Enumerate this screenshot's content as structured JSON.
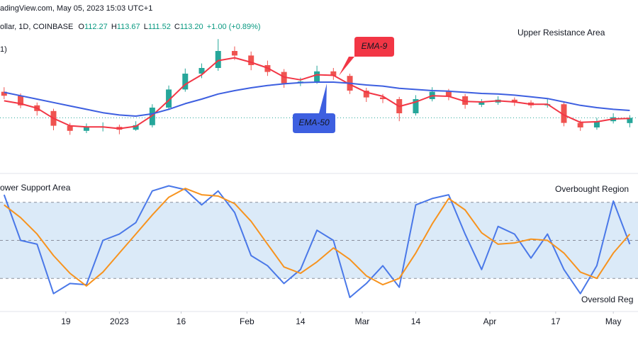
{
  "chart_data": [
    {
      "type": "candlestick",
      "source": "adingView.com, May 05, 2023 15:03 UTC+1",
      "symbol": "ollar, 1D, COINBASE",
      "ohlc": [
        {
          "key": "O",
          "value": "112.27"
        },
        {
          "key": "H",
          "value": "113.67"
        },
        {
          "key": "L",
          "value": "111.52"
        },
        {
          "key": "C",
          "value": "113.20"
        }
      ],
      "change": "+1.00 (+0.89%)",
      "indicator": "1)",
      "annotation": "Upper Resistance Area",
      "up_color": "#26a69a",
      "down_color": "#ef5350",
      "value_color": "#089981",
      "xlim": [
        -29,
        126
      ],
      "ylim": [
        104,
        134
      ],
      "x": [
        -28,
        -24,
        -20,
        -16,
        -12,
        -8,
        -4,
        0,
        4,
        8,
        12,
        16,
        20,
        24,
        28,
        32,
        36,
        40,
        44,
        48,
        52,
        56,
        60,
        64,
        68,
        72,
        76,
        80,
        84,
        88,
        92,
        96,
        100,
        104,
        108,
        112,
        116,
        120,
        124
      ],
      "open": [
        117.8,
        117.1,
        115.4,
        114.4,
        111.8,
        110.9,
        111.5,
        111.6,
        111.1,
        111.9,
        115.0,
        118.2,
        121.0,
        122.0,
        125.0,
        124.2,
        122.5,
        121.3,
        119.3,
        119.6,
        121.4,
        120.6,
        118.0,
        116.8,
        116.5,
        114.0,
        116.5,
        117.8,
        117.0,
        115.5,
        115.9,
        116.4,
        115.9,
        115.4,
        115.6,
        112.3,
        111.5,
        112.6,
        112.27
      ],
      "high": [
        118.6,
        117.5,
        115.9,
        114.8,
        112.3,
        112.2,
        112.4,
        112.0,
        112.6,
        115.6,
        118.9,
        121.9,
        122.8,
        127.1,
        125.8,
        124.9,
        123.3,
        121.8,
        120.3,
        122.4,
        122.0,
        121.0,
        118.5,
        117.4,
        116.9,
        117.2,
        118.6,
        118.3,
        117.4,
        116.5,
        117.0,
        116.8,
        116.3,
        116.6,
        116.0,
        112.8,
        113.2,
        114.0,
        113.67
      ],
      "low": [
        116.5,
        114.9,
        113.6,
        111.0,
        110.2,
        110.5,
        110.8,
        110.3,
        110.9,
        111.5,
        114.6,
        117.8,
        120.2,
        121.5,
        123.4,
        121.6,
        120.6,
        118.5,
        118.8,
        119.2,
        119.9,
        117.4,
        116.0,
        115.8,
        112.6,
        113.6,
        116.1,
        116.3,
        114.8,
        115.1,
        115.5,
        115.3,
        114.9,
        115.0,
        111.7,
        110.9,
        111.1,
        112.2,
        111.52
      ],
      "close": [
        117.1,
        115.4,
        114.4,
        111.8,
        110.9,
        111.5,
        111.6,
        111.1,
        111.9,
        115.0,
        118.2,
        121.0,
        122.0,
        125.0,
        124.2,
        122.5,
        121.3,
        119.3,
        119.6,
        121.4,
        120.6,
        118.0,
        116.8,
        116.5,
        114.0,
        116.5,
        117.8,
        117.0,
        115.5,
        115.9,
        116.4,
        115.9,
        115.4,
        115.6,
        112.3,
        111.5,
        112.6,
        113.3,
        113.2
      ],
      "series": [
        {
          "name": "EMA-9",
          "color": "#f23645",
          "values": [
            116.2,
            115.7,
            114.9,
            113.1,
            111.8,
            111.6,
            111.6,
            111.3,
            111.7,
            113.6,
            116.3,
            119.1,
            120.8,
            123.3,
            123.8,
            123.0,
            122.0,
            120.4,
            119.9,
            120.8,
            120.7,
            119.1,
            117.7,
            117.0,
            115.2,
            116.0,
            117.1,
            117.0,
            116.1,
            116.0,
            116.2,
            116.0,
            115.6,
            115.6,
            113.7,
            112.4,
            112.5,
            113.0,
            113.1
          ]
        },
        {
          "name": "EMA-50",
          "color": "#3d5fe0",
          "values": [
            117.7,
            117.1,
            116.5,
            115.9,
            115.3,
            114.7,
            114.1,
            113.7,
            113.5,
            113.9,
            114.7,
            115.7,
            116.5,
            117.4,
            118.0,
            118.5,
            118.9,
            119.2,
            119.4,
            119.5,
            119.5,
            119.3,
            119.0,
            118.8,
            118.4,
            118.2,
            118.0,
            117.9,
            117.7,
            117.5,
            117.4,
            117.2,
            116.9,
            116.6,
            116.0,
            115.4,
            115.0,
            114.7,
            114.5
          ]
        }
      ]
    },
    {
      "type": "line",
      "annotations": [
        "ower Support Area",
        "Overbought Region",
        "Oversold Reg"
      ],
      "xlim": [
        -29,
        126
      ],
      "ylim": [
        0,
        100
      ],
      "levels": [
        20,
        50,
        80
      ],
      "band_color": "#dbeaf8",
      "xticks": [
        {
          "value": -13,
          "label": "19"
        },
        {
          "value": 0,
          "label": "2023"
        },
        {
          "value": 15,
          "label": "16"
        },
        {
          "value": 31,
          "label": "Feb"
        },
        {
          "value": 44,
          "label": "14"
        },
        {
          "value": 59,
          "label": "Mar"
        },
        {
          "value": 72,
          "label": "14"
        },
        {
          "value": 90,
          "label": "Apr"
        },
        {
          "value": 106,
          "label": "17"
        },
        {
          "value": 120,
          "label": "May"
        }
      ],
      "x": [
        -28,
        -24,
        -20,
        -16,
        -12,
        -8,
        -4,
        0,
        4,
        8,
        12,
        16,
        20,
        24,
        28,
        32,
        36,
        40,
        44,
        48,
        52,
        56,
        60,
        64,
        68,
        72,
        76,
        80,
        84,
        88,
        92,
        96,
        100,
        104,
        108,
        112,
        116,
        120,
        124
      ],
      "series": [
        {
          "color": "#4a78e8",
          "values": [
            86,
            50,
            47,
            8,
            16,
            15,
            50,
            55,
            64,
            89,
            93,
            90,
            78,
            89,
            72,
            38,
            30,
            16,
            27,
            58,
            50,
            5,
            16,
            30,
            13,
            78,
            83,
            86,
            55,
            27,
            61,
            55,
            36,
            55,
            27,
            8,
            30,
            81,
            47
          ]
        },
        {
          "color": "#f7931e",
          "values": [
            78,
            68,
            55,
            38,
            24,
            14,
            25,
            40,
            55,
            70,
            84,
            91,
            86,
            85,
            79,
            65,
            47,
            29,
            24,
            33,
            44,
            35,
            22,
            15,
            20,
            40,
            63,
            83,
            74,
            56,
            47,
            48,
            51,
            50,
            40,
            25,
            20,
            40,
            55
          ]
        }
      ]
    }
  ]
}
